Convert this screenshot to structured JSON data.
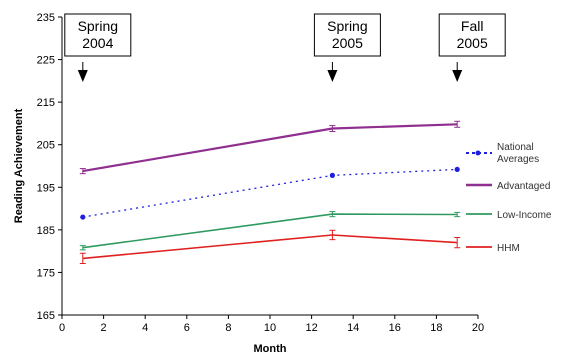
{
  "chart_data": {
    "type": "line",
    "xlabel": "Month",
    "ylabel": "Reading Achievement",
    "xlim": [
      0,
      20
    ],
    "ylim": [
      165,
      235
    ],
    "xticks": [
      0,
      2,
      4,
      6,
      8,
      10,
      12,
      14,
      16,
      18,
      20
    ],
    "yticks": [
      165,
      175,
      185,
      195,
      205,
      215,
      225,
      235
    ],
    "grid": false,
    "legend_placement": "right",
    "x": [
      1,
      13,
      19
    ],
    "series": [
      {
        "name": "National Averages",
        "values": [
          188,
          197.8,
          199.2
        ],
        "color": "#1f1fe0",
        "style": "dotted-markers"
      },
      {
        "name": "Advantaged",
        "values": [
          198.8,
          208.8,
          209.8
        ],
        "color": "#8f2f8f",
        "style": "solid",
        "error": [
          0.6,
          0.7,
          0.7
        ]
      },
      {
        "name": "Low-Income",
        "values": [
          180.8,
          188.7,
          188.6
        ],
        "color": "#2f9a5f",
        "style": "solid",
        "error": [
          0.5,
          0.6,
          0.5
        ]
      },
      {
        "name": "HHM",
        "values": [
          178.3,
          183.8,
          182
        ],
        "color": "#e02020",
        "style": "solid",
        "error": [
          1.2,
          1.1,
          1.2
        ]
      }
    ],
    "annotations": [
      {
        "lines": [
          "Spring",
          "2004"
        ],
        "x": 1
      },
      {
        "lines": [
          "Spring",
          "2005"
        ],
        "x": 13
      },
      {
        "lines": [
          "Fall",
          "2005"
        ],
        "x": 19
      }
    ],
    "legend_lines": [
      [
        "National",
        "Averages"
      ],
      [
        "Advantaged"
      ],
      [
        "Low-Income"
      ],
      [
        "HHM"
      ]
    ]
  }
}
